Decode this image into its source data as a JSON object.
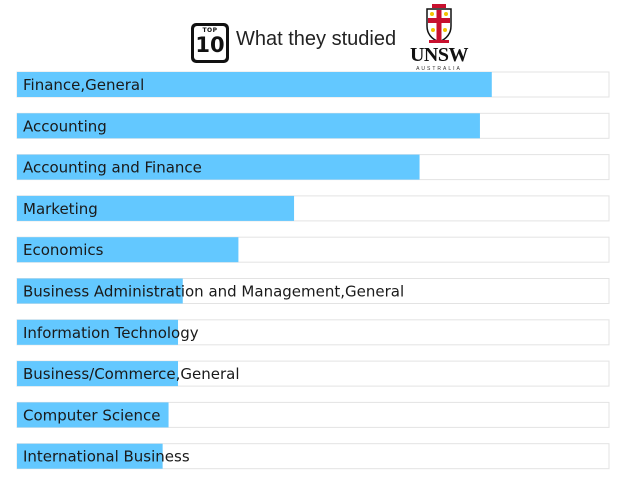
{
  "header": {
    "badge_small": "TOP",
    "badge_big": "10",
    "title": "What they studied",
    "logo_text": "UNSW",
    "logo_subtext": "AUSTRALIA"
  },
  "colors": {
    "bar": "#63c8ff",
    "track_border": "#e3e3e3",
    "logo_red": "#c8102e",
    "logo_gold": "#f2c300"
  },
  "chart_data": {
    "type": "bar",
    "orientation": "horizontal",
    "title": "What they studied",
    "categories": [
      "Finance,General",
      "Accounting",
      "Accounting and Finance",
      "Marketing",
      "Economics",
      "Business Administration and Management,General",
      "Information Technology",
      "Business/Commerce,General",
      "Computer Science",
      "International Business"
    ],
    "values": [
      80.2,
      78.2,
      68.0,
      46.8,
      37.4,
      28.0,
      27.2,
      27.2,
      25.6,
      24.6
    ],
    "xlim": [
      0,
      100
    ],
    "grid": false,
    "legend": "none"
  }
}
